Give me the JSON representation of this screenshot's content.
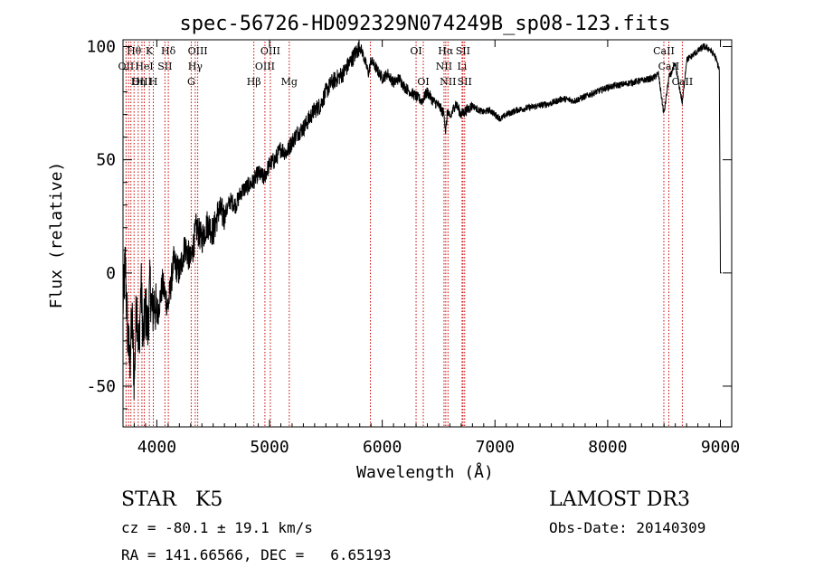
{
  "chart_data": {
    "type": "line",
    "title": "spec-56726-HD092329N074249B_sp08-123.fits",
    "xlabel": "Wavelength (Å)",
    "ylabel": "Flux (relative)",
    "xlim": [
      3700,
      9100
    ],
    "ylim": [
      -68,
      103
    ],
    "xticks": [
      4000,
      5000,
      6000,
      7000,
      8000,
      9000
    ],
    "yticks": [
      -50,
      0,
      50,
      100
    ],
    "grid": false,
    "series": [
      {
        "x": [
          3700,
          3720,
          3740,
          3760,
          3780,
          3800,
          3820,
          3840,
          3860,
          3880,
          3900,
          3920,
          3940,
          3960,
          3980,
          4000,
          4050,
          4100,
          4150,
          4200,
          4250,
          4300,
          4350,
          4400,
          4450,
          4500,
          4550,
          4600,
          4650,
          4700,
          4750,
          4800,
          4850,
          4900,
          4950,
          5000,
          5050,
          5100,
          5150,
          5200,
          5250,
          5300,
          5350,
          5400,
          5450,
          5500,
          5550,
          5600,
          5650,
          5700,
          5750,
          5800,
          5820,
          5850,
          5880,
          5900,
          5950,
          6000,
          6050,
          6100,
          6150,
          6200,
          6250,
          6300,
          6350,
          6400,
          6450,
          6500,
          6550,
          6563,
          6580,
          6600,
          6650,
          6700,
          6750,
          6800,
          6850,
          6900,
          6950,
          7000,
          7050,
          7100,
          7150,
          7200,
          7300,
          7400,
          7500,
          7600,
          7700,
          7800,
          7900,
          8000,
          8100,
          8200,
          8300,
          8400,
          8450,
          8498,
          8542,
          8600,
          8662,
          8700,
          8750,
          8800,
          8850,
          8900,
          8950,
          8990,
          9000,
          9010
        ],
        "values": [
          -15,
          5,
          -25,
          -40,
          -20,
          -48,
          -10,
          -35,
          -5,
          -30,
          -15,
          -25,
          -5,
          -18,
          -12,
          -20,
          -5,
          -15,
          5,
          0,
          12,
          5,
          20,
          15,
          22,
          18,
          28,
          25,
          32,
          30,
          36,
          38,
          40,
          44,
          42,
          48,
          50,
          55,
          53,
          58,
          62,
          64,
          68,
          72,
          74,
          80,
          84,
          86,
          88,
          92,
          96,
          100,
          98,
          93,
          88,
          94,
          90,
          86,
          88,
          84,
          86,
          82,
          80,
          78,
          76,
          80,
          76,
          74,
          70,
          62,
          72,
          68,
          75,
          70,
          72,
          74,
          72,
          71,
          72,
          70,
          68,
          70,
          71,
          72,
          73,
          74,
          75,
          77,
          76,
          78,
          80,
          82,
          83,
          84,
          85,
          86,
          88,
          70,
          86,
          92,
          75,
          94,
          96,
          98,
          100,
          99,
          96,
          90,
          0,
          0
        ]
      }
    ],
    "line_markers": [
      {
        "label": "Hθ",
        "wavelength": 3798,
        "row": 0
      },
      {
        "label": "K",
        "wavelength": 3934,
        "row": 0
      },
      {
        "label": "Hδ",
        "wavelength": 4102,
        "row": 0
      },
      {
        "label": "OIII",
        "wavelength": 4363,
        "row": 0
      },
      {
        "label": "OIII",
        "wavelength": 5007,
        "row": 0
      },
      {
        "label": "OI",
        "wavelength": 6300,
        "row": 0
      },
      {
        "label": "Hα",
        "wavelength": 6563,
        "row": 0
      },
      {
        "label": "SII",
        "wavelength": 6716,
        "row": 0
      },
      {
        "label": "CaII",
        "wavelength": 8498,
        "row": 0
      },
      {
        "label": "OII",
        "wavelength": 3727,
        "row": 1
      },
      {
        "label": "HeI",
        "wavelength": 3889,
        "row": 1
      },
      {
        "label": "SII",
        "wavelength": 4072,
        "row": 1
      },
      {
        "label": "Hγ",
        "wavelength": 4341,
        "row": 1
      },
      {
        "label": "OIII",
        "wavelength": 4959,
        "row": 1
      },
      {
        "label": "NII",
        "wavelength": 6548,
        "row": 1
      },
      {
        "label": "Li",
        "wavelength": 6708,
        "row": 1
      },
      {
        "label": "CaII",
        "wavelength": 8542,
        "row": 1
      },
      {
        "label": "OIII",
        "wavelength": 3868,
        "row": 2
      },
      {
        "label": "Hη",
        "wavelength": 3835,
        "row": 2
      },
      {
        "label": "H",
        "wavelength": 3969,
        "row": 2
      },
      {
        "label": "G",
        "wavelength": 4305,
        "row": 2
      },
      {
        "label": "Hβ",
        "wavelength": 4861,
        "row": 2
      },
      {
        "label": "Mg",
        "wavelength": 5175,
        "row": 2
      },
      {
        "label": "OI",
        "wavelength": 6364,
        "row": 2
      },
      {
        "label": "NII",
        "wavelength": 6583,
        "row": 2
      },
      {
        "label": "SII",
        "wavelength": 6731,
        "row": 2
      },
      {
        "label": "CaII",
        "wavelength": 8662,
        "row": 2
      }
    ],
    "extra_marker_lines": [
      3750,
      3770,
      5895
    ]
  },
  "info": {
    "class_text": "STAR   K5",
    "survey": "LAMOST DR3",
    "cz": "cz = -80.1 ± 19.1 km/s",
    "obs_date": "Obs-Date: 20140309",
    "radec": "RA = 141.66566, DEC =   6.65193"
  }
}
